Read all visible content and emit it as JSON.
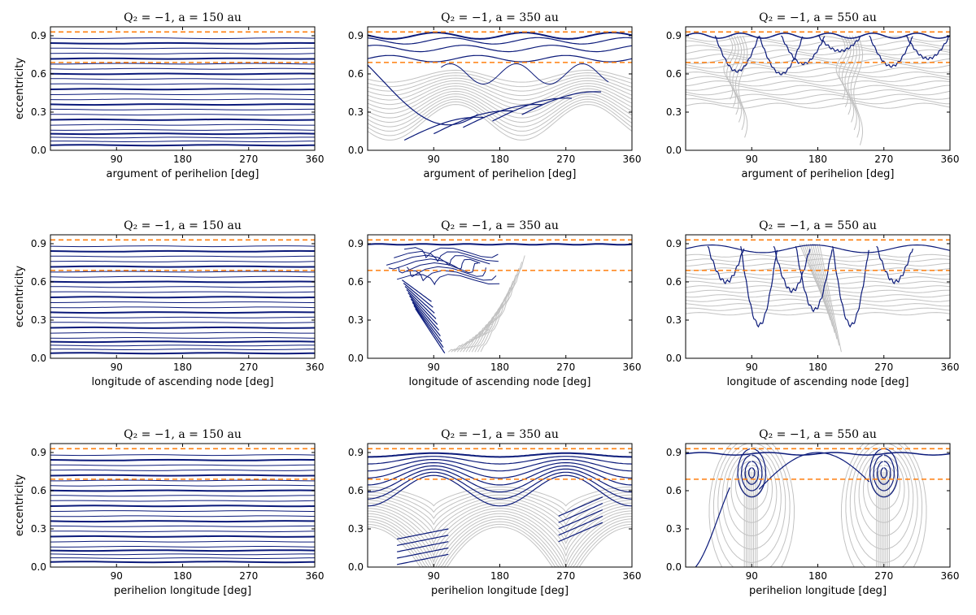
{
  "chart_data": [
    {
      "id": "p11",
      "type": "line",
      "title": "Q₂ = −1, a = 150 au",
      "xlabel": "argument of perihelion [deg]",
      "ylabel": "eccentricity",
      "xlim": [
        0,
        360
      ],
      "ylim": [
        0,
        0.97
      ],
      "xticks": [
        "90",
        "180",
        "270",
        "360"
      ],
      "yticks": [
        "0.0",
        "0.3",
        "0.6",
        "0.9"
      ],
      "reference_lines": [
        0.93,
        0.69
      ],
      "regime": "flat"
    },
    {
      "id": "p12",
      "type": "line",
      "title": "Q₂ = −1, a = 350 au",
      "xlabel": "argument of perihelion [deg]",
      "ylabel": "",
      "xlim": [
        0,
        360
      ],
      "ylim": [
        0,
        0.97
      ],
      "xticks": [
        "90",
        "180",
        "270",
        "360"
      ],
      "yticks": [
        "0.0",
        "0.3",
        "0.6",
        "0.9"
      ],
      "reference_lines": [
        0.93,
        0.69
      ],
      "regime": "wave2"
    },
    {
      "id": "p13",
      "type": "line",
      "title": "Q₂ = −1, a = 550 au",
      "xlabel": "argument of perihelion [deg]",
      "ylabel": "",
      "xlim": [
        0,
        360
      ],
      "ylim": [
        0,
        0.97
      ],
      "xticks": [
        "90",
        "180",
        "270",
        "360"
      ],
      "yticks": [
        "0.0",
        "0.3",
        "0.6",
        "0.9"
      ],
      "reference_lines": [
        0.93,
        0.69
      ],
      "regime": "chaos_omega"
    },
    {
      "id": "p21",
      "type": "line",
      "title": "Q₂ = −1, a = 150 au",
      "xlabel": "longitude of ascending node [deg]",
      "ylabel": "eccentricity",
      "xlim": [
        0,
        360
      ],
      "ylim": [
        0,
        0.97
      ],
      "xticks": [
        "90",
        "180",
        "270",
        "360"
      ],
      "yticks": [
        "0.0",
        "0.3",
        "0.6",
        "0.9"
      ],
      "reference_lines": [
        0.93,
        0.69
      ],
      "regime": "flat"
    },
    {
      "id": "p22",
      "type": "line",
      "title": "Q₂ = −1, a = 350 au",
      "xlabel": "longitude of ascending node [deg]",
      "ylabel": "",
      "xlim": [
        0,
        360
      ],
      "ylim": [
        0,
        0.97
      ],
      "xticks": [
        "90",
        "180",
        "270",
        "360"
      ],
      "yticks": [
        "0.0",
        "0.3",
        "0.6",
        "0.9"
      ],
      "reference_lines": [
        0.93,
        0.69
      ],
      "regime": "node_cluster"
    },
    {
      "id": "p23",
      "type": "line",
      "title": "Q₂ = −1, a = 550 au",
      "xlabel": "longitude of ascending node [deg]",
      "ylabel": "",
      "xlim": [
        0,
        360
      ],
      "ylim": [
        0,
        0.97
      ],
      "xticks": [
        "90",
        "180",
        "270",
        "360"
      ],
      "yticks": [
        "0.0",
        "0.3",
        "0.6",
        "0.9"
      ],
      "reference_lines": [
        0.93,
        0.69
      ],
      "regime": "node_chaos"
    },
    {
      "id": "p31",
      "type": "line",
      "title": "Q₂ = −1, a = 150 au",
      "xlabel": "perihelion longitude [deg]",
      "ylabel": "eccentricity",
      "xlim": [
        0,
        360
      ],
      "ylim": [
        0,
        0.97
      ],
      "xticks": [
        "90",
        "180",
        "270",
        "360"
      ],
      "yticks": [
        "0.0",
        "0.3",
        "0.6",
        "0.9"
      ],
      "reference_lines": [
        0.93,
        0.69
      ],
      "regime": "flat"
    },
    {
      "id": "p32",
      "type": "line",
      "title": "Q₂ = −1, a = 350 au",
      "xlabel": "perihelion longitude [deg]",
      "ylabel": "",
      "xlim": [
        0,
        360
      ],
      "ylim": [
        0,
        0.97
      ],
      "xticks": [
        "90",
        "180",
        "270",
        "360"
      ],
      "yticks": [
        "0.0",
        "0.3",
        "0.6",
        "0.9"
      ],
      "reference_lines": [
        0.93,
        0.69
      ],
      "regime": "arches"
    },
    {
      "id": "p33",
      "type": "line",
      "title": "Q₂ = −1, a = 550 au",
      "xlabel": "perihelion longitude [deg]",
      "ylabel": "",
      "xlim": [
        0,
        360
      ],
      "ylim": [
        0,
        0.97
      ],
      "xticks": [
        "90",
        "180",
        "270",
        "360"
      ],
      "yticks": [
        "0.0",
        "0.3",
        "0.6",
        "0.9"
      ],
      "reference_lines": [
        0.93,
        0.69
      ],
      "regime": "islands"
    }
  ],
  "colors": {
    "navy": "#0b1a7a",
    "gray": "#c2c2c2",
    "orange": "#ff7f0e",
    "axis": "#000000"
  }
}
